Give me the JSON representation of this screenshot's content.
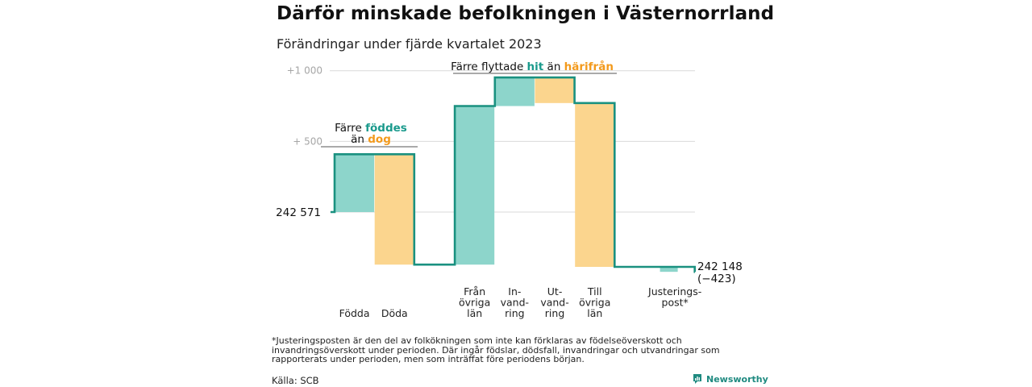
{
  "title": "Därför minskade befolkningen i Västernorrland",
  "subtitle": "Förändringar under fjärde kvartalet 2023",
  "colors": {
    "inflow": "#8dd5cb",
    "outflow": "#fbd58e",
    "line": "#1a9180",
    "teal_text": "#1a9a8c",
    "orange_text": "#f39a1c",
    "grid": "#d9d9d9"
  },
  "chart_data": {
    "type": "waterfall",
    "y_ticks": [
      {
        "value": 1000,
        "label": "+1  000"
      },
      {
        "value": 500,
        "label": "+  500"
      }
    ],
    "start": {
      "value": 0,
      "label": "242  571"
    },
    "end": {
      "value": -423,
      "label": "242 148",
      "sublabel": "(−423)"
    },
    "steps": [
      {
        "label": "Födda",
        "delta": 409,
        "kind": "in"
      },
      {
        "label": "Döda",
        "delta": -781,
        "kind": "out"
      },
      {
        "label": "Från övriga län",
        "delta": 1122,
        "kind": "in"
      },
      {
        "label": "In- vand- ring",
        "delta": 202,
        "kind": "in"
      },
      {
        "label": "Ut- vand- ring",
        "delta": -181,
        "kind": "out"
      },
      {
        "label": "Till övriga län",
        "delta": -1159,
        "kind": "out"
      },
      {
        "label": "Justerings- post*",
        "delta": -35,
        "kind": "adj"
      }
    ],
    "annotations": [
      {
        "text_parts": [
          "Färre ",
          "föddes",
          " än ",
          "dog"
        ],
        "covers": [
          0,
          1
        ]
      },
      {
        "text_parts": [
          "Färre flyttade ",
          "hit",
          " än ",
          "härifrån"
        ],
        "covers": [
          2,
          5
        ]
      }
    ]
  },
  "category_labels": [
    [
      "Födda"
    ],
    [
      "Döda"
    ],
    [
      "Från",
      "övriga",
      "län"
    ],
    [
      "In-",
      "vand-",
      "ring"
    ],
    [
      "Ut-",
      "vand-",
      "ring"
    ],
    [
      "Till",
      "övriga",
      "län"
    ],
    [
      "Justerings-",
      "post*"
    ]
  ],
  "footnote": "*Justeringsposten är den del av folkökningen som inte kan förklaras av födelseöverskott och invandringsöverskott under perioden. Där ingår födslar, dödsfall, invandringar och utvandringar som rapporterats under perioden, men som inträffat före periodens början.",
  "source": "Källa: SCB",
  "brand": "Newsworthy"
}
